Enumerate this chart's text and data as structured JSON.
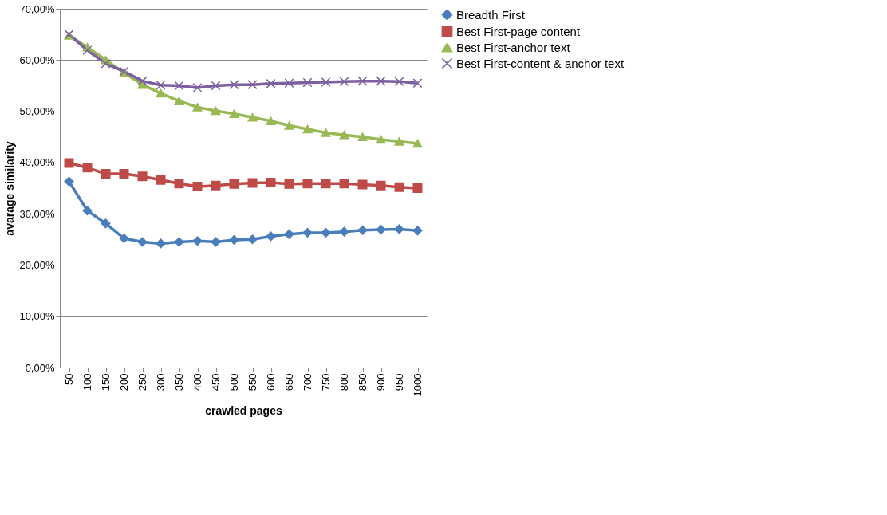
{
  "chart_data": {
    "type": "line",
    "xlabel": "crawled pages",
    "ylabel": "avarage similarity",
    "categories": [
      "50",
      "100",
      "150",
      "200",
      "250",
      "300",
      "350",
      "400",
      "450",
      "500",
      "550",
      "600",
      "650",
      "700",
      "750",
      "800",
      "850",
      "900",
      "950",
      "1000"
    ],
    "ylim": [
      0,
      70
    ],
    "yticks": [
      {
        "value": 0,
        "label": "0,00%"
      },
      {
        "value": 10,
        "label": "10,00%"
      },
      {
        "value": 20,
        "label": "20,00%"
      },
      {
        "value": 30,
        "label": "30,00%"
      },
      {
        "value": 40,
        "label": "40,00%"
      },
      {
        "value": 50,
        "label": "50,00%"
      },
      {
        "value": 60,
        "label": "60,00%"
      },
      {
        "value": 70,
        "label": "70,00%"
      }
    ],
    "grid": "y",
    "legend": "right",
    "line_style": "solid",
    "series": [
      {
        "name": "Breadth First",
        "color": "#4a7ebb",
        "marker": "diamond",
        "values": [
          36.3,
          30.6,
          28.1,
          25.2,
          24.5,
          24.2,
          24.5,
          24.7,
          24.5,
          24.9,
          25.0,
          25.6,
          26.0,
          26.3,
          26.3,
          26.5,
          26.8,
          26.9,
          27.0,
          26.7
        ]
      },
      {
        "name": "Best First-page content",
        "color": "#be4b48",
        "marker": "square",
        "values": [
          39.9,
          39.0,
          37.8,
          37.8,
          37.3,
          36.6,
          35.9,
          35.3,
          35.5,
          35.8,
          36.0,
          36.1,
          35.8,
          35.9,
          35.9,
          35.9,
          35.7,
          35.5,
          35.2,
          35.0
        ]
      },
      {
        "name": "Best First-anchor text",
        "color": "#98b954",
        "marker": "triangle",
        "values": [
          64.8,
          62.5,
          60.0,
          57.5,
          55.2,
          53.5,
          52.0,
          50.8,
          50.1,
          49.5,
          48.8,
          48.1,
          47.2,
          46.5,
          45.8,
          45.4,
          45.0,
          44.5,
          44.1,
          43.7
        ]
      },
      {
        "name": "Best First-content & anchor text",
        "color": "#7d60a0",
        "marker": "cross",
        "values": [
          65.0,
          61.9,
          59.3,
          57.8,
          55.9,
          55.1,
          55.0,
          54.6,
          55.0,
          55.2,
          55.2,
          55.4,
          55.5,
          55.6,
          55.7,
          55.8,
          55.9,
          55.9,
          55.8,
          55.5
        ]
      }
    ]
  }
}
